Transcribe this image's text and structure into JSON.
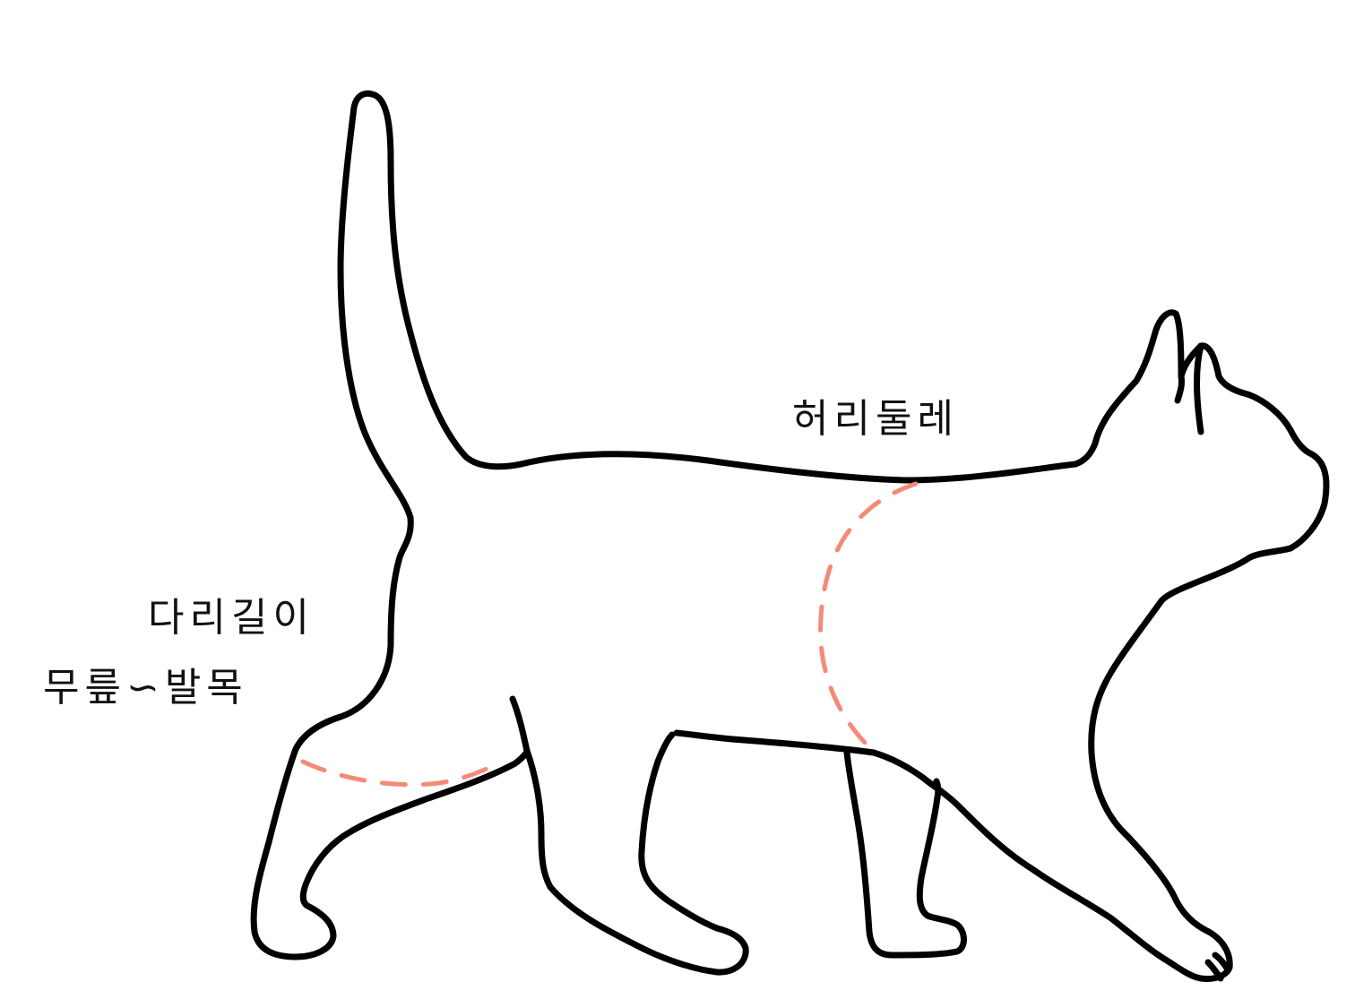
{
  "labels": {
    "waist": "허리둘레",
    "leg_length": "다리길이",
    "leg_range": "무릎∽발목"
  },
  "colors": {
    "outline": "#000000",
    "measure_line": "#f58a77",
    "background": "#ffffff"
  }
}
